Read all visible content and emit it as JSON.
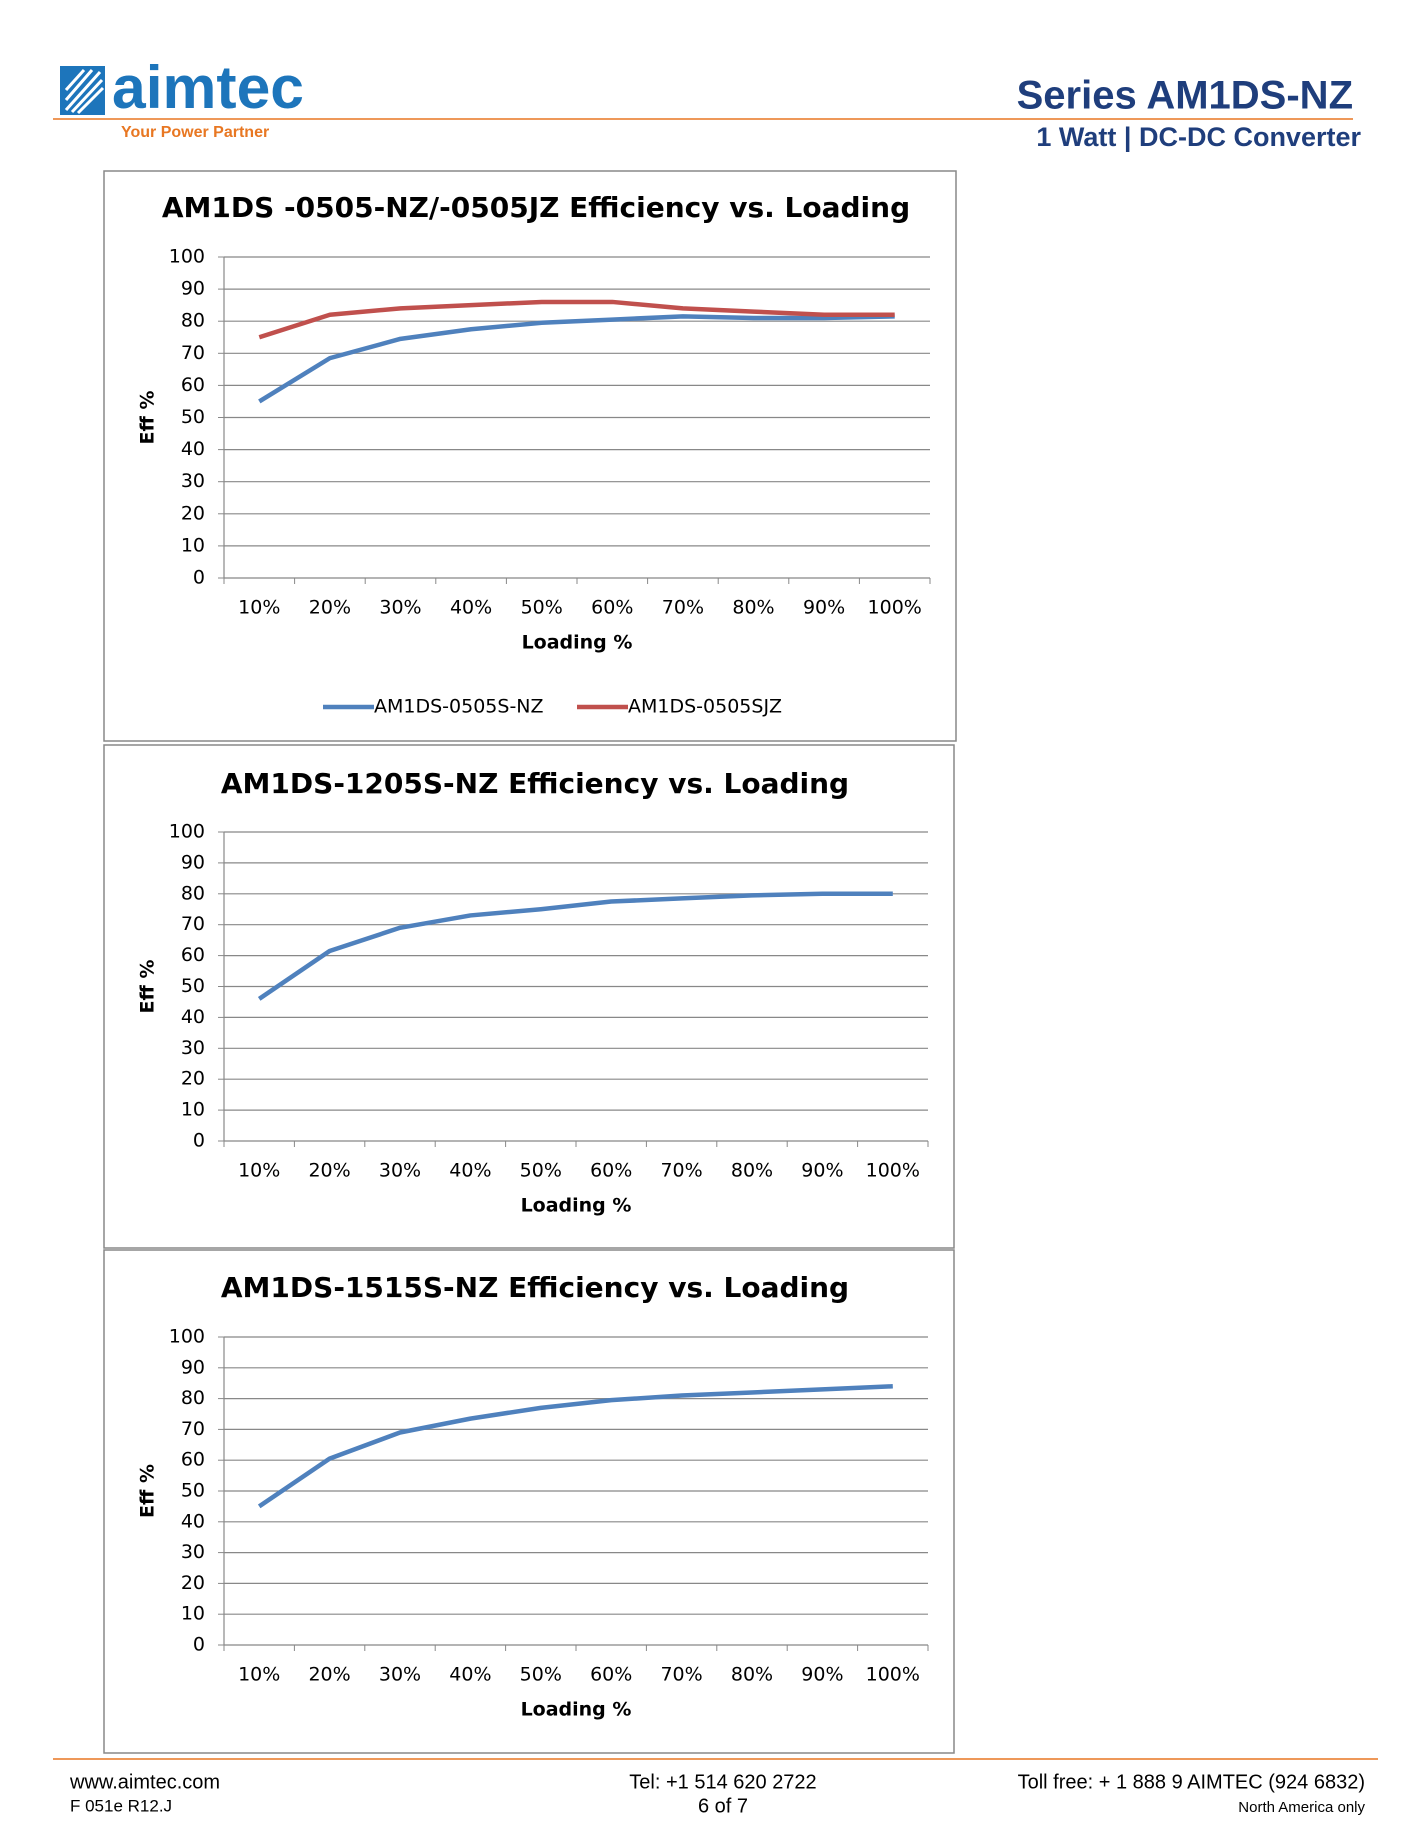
{
  "header": {
    "logo_text": "aimtec",
    "tagline": "Your Power Partner",
    "title": "Series AM1DS-NZ",
    "subtitle": "1 Watt | DC-DC Converter"
  },
  "chart_data": [
    {
      "type": "line",
      "title": "AM1DS -0505-NZ/-0505JZ Efficiency vs. Loading",
      "x_label": "Loading %",
      "y_label": "Eff %",
      "categories": [
        "10%",
        "20%",
        "30%",
        "40%",
        "50%",
        "60%",
        "70%",
        "80%",
        "90%",
        "100%"
      ],
      "series": [
        {
          "name": "AM1DS-0505S-NZ",
          "color": "#4f81bd",
          "values": [
            55,
            68.5,
            74.5,
            77.5,
            79.5,
            80.5,
            81.5,
            81,
            81,
            81.5
          ]
        },
        {
          "name": "AM1DS-0505SJZ",
          "color": "#c0504d",
          "values": [
            75,
            82,
            84,
            85,
            86,
            86,
            84,
            83,
            82,
            82
          ]
        }
      ],
      "ylim": [
        0,
        100
      ],
      "yticks": [
        0,
        10,
        20,
        30,
        40,
        50,
        60,
        70,
        80,
        90,
        100
      ],
      "grid": true,
      "legend": "bottom"
    },
    {
      "type": "line",
      "title": "AM1DS-1205S-NZ Efficiency vs. Loading",
      "x_label": "Loading %",
      "y_label": "Eff %",
      "categories": [
        "10%",
        "20%",
        "30%",
        "40%",
        "50%",
        "60%",
        "70%",
        "80%",
        "90%",
        "100%"
      ],
      "series": [
        {
          "color": "#4f81bd",
          "values": [
            46,
            61.5,
            69,
            73,
            75,
            77.5,
            78.5,
            79.5,
            80,
            80
          ]
        }
      ],
      "ylim": [
        0,
        100
      ],
      "yticks": [
        0,
        10,
        20,
        30,
        40,
        50,
        60,
        70,
        80,
        90,
        100
      ],
      "grid": true
    },
    {
      "type": "line",
      "title": "AM1DS-1515S-NZ Efficiency vs. Loading",
      "x_label": "Loading %",
      "y_label": "Eff %",
      "categories": [
        "10%",
        "20%",
        "30%",
        "40%",
        "50%",
        "60%",
        "70%",
        "80%",
        "90%",
        "100%"
      ],
      "series": [
        {
          "color": "#4f81bd",
          "values": [
            45,
            60.5,
            69,
            73.5,
            77,
            79.5,
            81,
            82,
            83,
            84
          ]
        }
      ],
      "ylim": [
        0,
        100
      ],
      "yticks": [
        0,
        10,
        20,
        30,
        40,
        50,
        60,
        70,
        80,
        90,
        100
      ],
      "grid": true
    }
  ],
  "footer": {
    "website": "www.aimtec.com",
    "form": "F 051e R12.J",
    "tel": "Tel: +1 514 620 2722",
    "page": "6 of 7",
    "tollfree": "Toll free: + 1 888 9 AIMTEC (924 6832)",
    "region": "North America only"
  }
}
